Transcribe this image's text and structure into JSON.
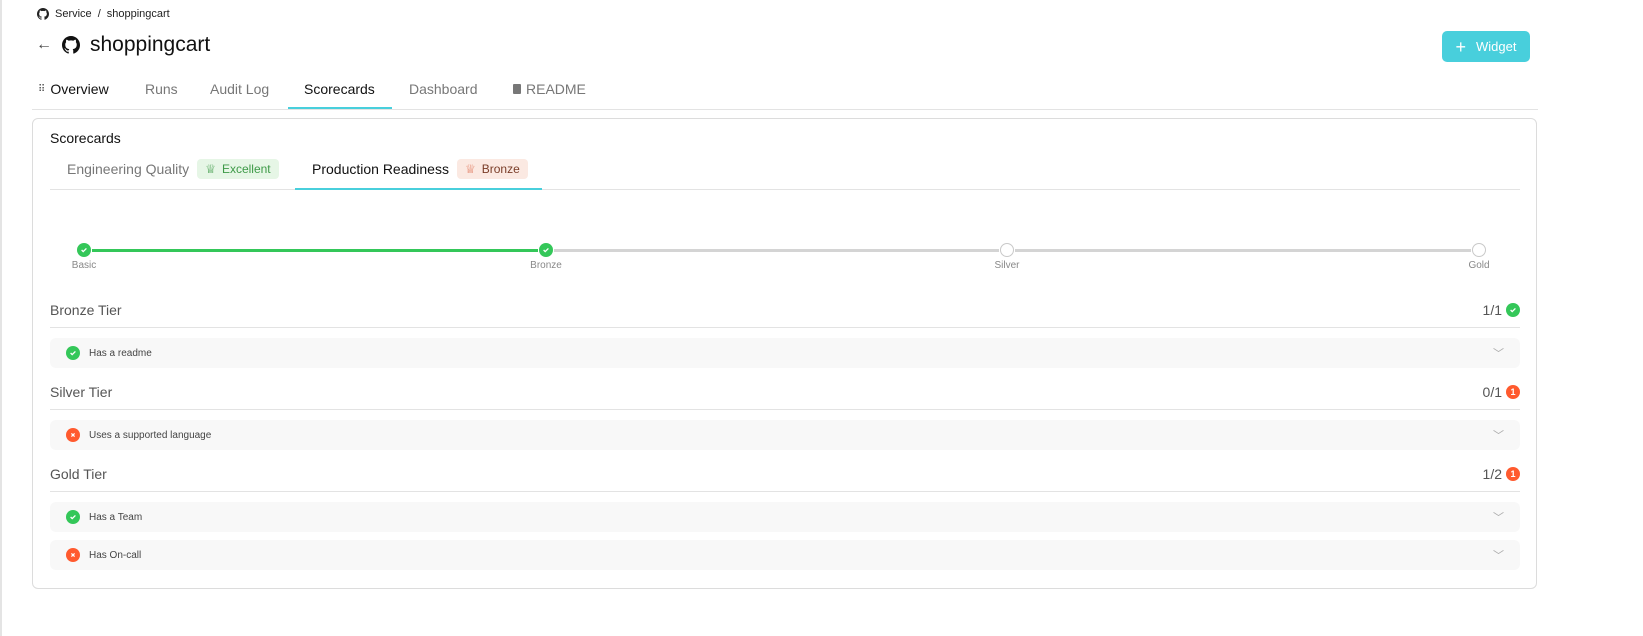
{
  "breadcrumb": {
    "parent": "Service",
    "separator": "/",
    "current": "shoppingcart"
  },
  "header": {
    "title": "shoppingcart",
    "widget_button": "Widget"
  },
  "tabs": [
    {
      "label": "Overview",
      "icon": "grip-icon"
    },
    {
      "label": "Runs"
    },
    {
      "label": "Audit Log"
    },
    {
      "label": "Scorecards",
      "active": true
    },
    {
      "label": "Dashboard"
    },
    {
      "label": "README",
      "icon": "book-icon"
    }
  ],
  "card": {
    "title": "Scorecards",
    "scorecards": [
      {
        "label": "Engineering Quality",
        "badge": "Excellent",
        "badge_color": "#3e9a48"
      },
      {
        "label": "Production Readiness",
        "badge": "Bronze",
        "badge_color": "#7a3d28",
        "active": true
      }
    ],
    "levels": [
      {
        "label": "Basic",
        "achieved": true
      },
      {
        "label": "Bronze",
        "achieved": true
      },
      {
        "label": "Silver",
        "achieved": false
      },
      {
        "label": "Gold",
        "achieved": false
      }
    ],
    "tiers": [
      {
        "name": "Bronze Tier",
        "score": "1/1",
        "status": "pass",
        "failed": "",
        "rules": [
          {
            "label": "Has a readme",
            "pass": true
          }
        ]
      },
      {
        "name": "Silver Tier",
        "score": "0/1",
        "status": "fail",
        "failed": "1",
        "rules": [
          {
            "label": "Uses a supported language",
            "pass": false
          }
        ]
      },
      {
        "name": "Gold Tier",
        "score": "1/2",
        "status": "fail",
        "failed": "1",
        "rules": [
          {
            "label": "Has a Team",
            "pass": true
          },
          {
            "label": "Has On-call",
            "pass": false
          }
        ]
      }
    ]
  },
  "colors": {
    "accent": "#48CFDC",
    "success": "#34c759",
    "error": "#ff5a2e"
  }
}
